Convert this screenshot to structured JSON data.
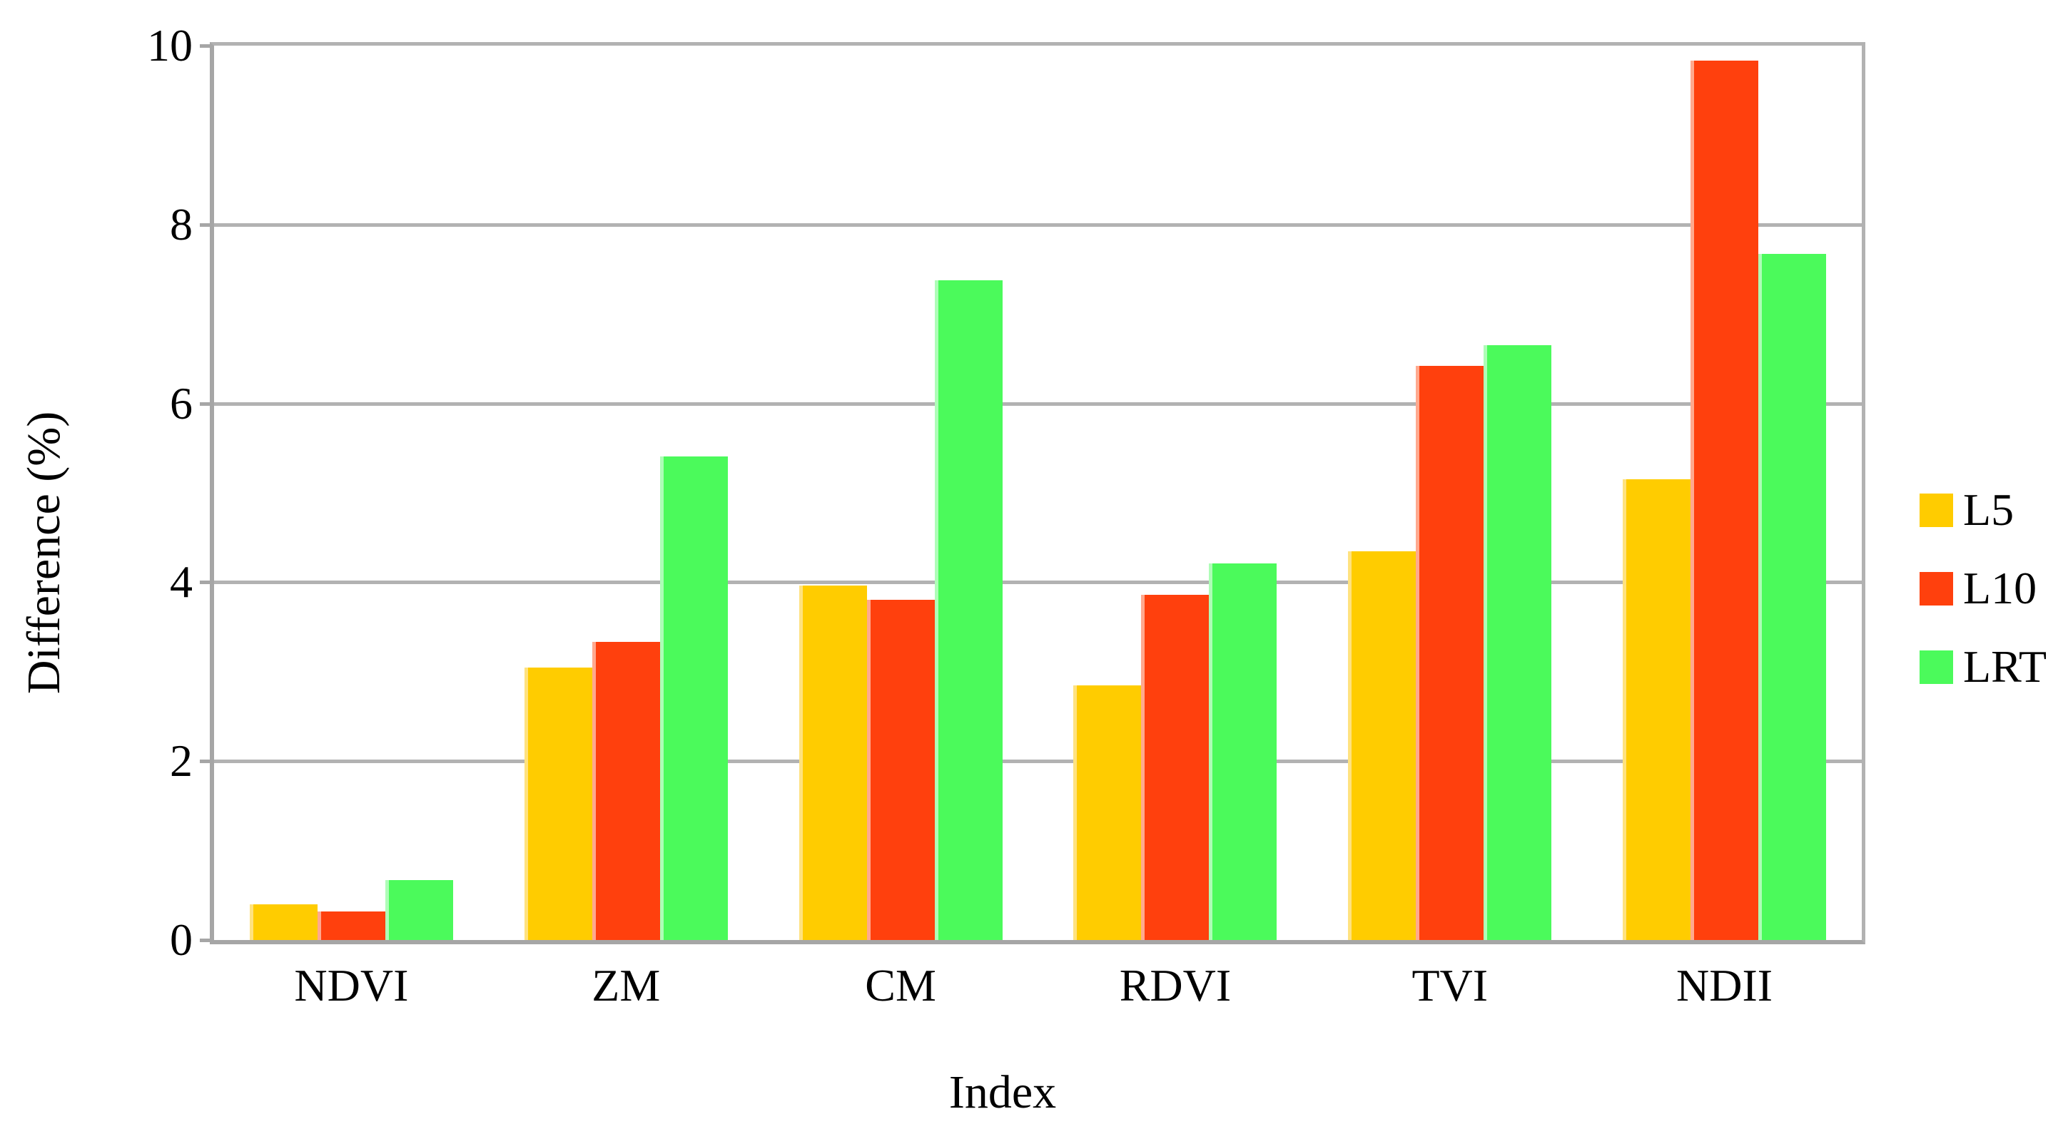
{
  "chart_data": {
    "type": "bar",
    "categories": [
      "NDVI",
      "ZM",
      "CM",
      "RDVI",
      "TVI",
      "NDII"
    ],
    "series": [
      {
        "name": "L5",
        "color": "#FFCC00",
        "edge_color": "#FFE27F",
        "values": [
          0.4,
          3.05,
          3.96,
          2.85,
          4.35,
          5.15
        ]
      },
      {
        "name": "L10",
        "color": "#FF400D",
        "edge_color": "#FFA98E",
        "values": [
          0.32,
          3.33,
          3.8,
          3.86,
          6.42,
          9.83
        ]
      },
      {
        "name": "LRT",
        "color": "#4BFA5B",
        "edge_color": "#AEFDB7",
        "values": [
          0.67,
          5.41,
          7.38,
          4.21,
          6.65,
          7.67
        ]
      }
    ],
    "xlabel": "Index",
    "ylabel": "Difference (%)",
    "ylim": [
      0,
      10
    ],
    "yticks": [
      "0",
      "2",
      "4",
      "6",
      "8",
      "10"
    ],
    "grid": "horizontal",
    "legend_position": "right",
    "grid_color": "#B2B2B2",
    "axis_color": "#A6A6A6"
  }
}
